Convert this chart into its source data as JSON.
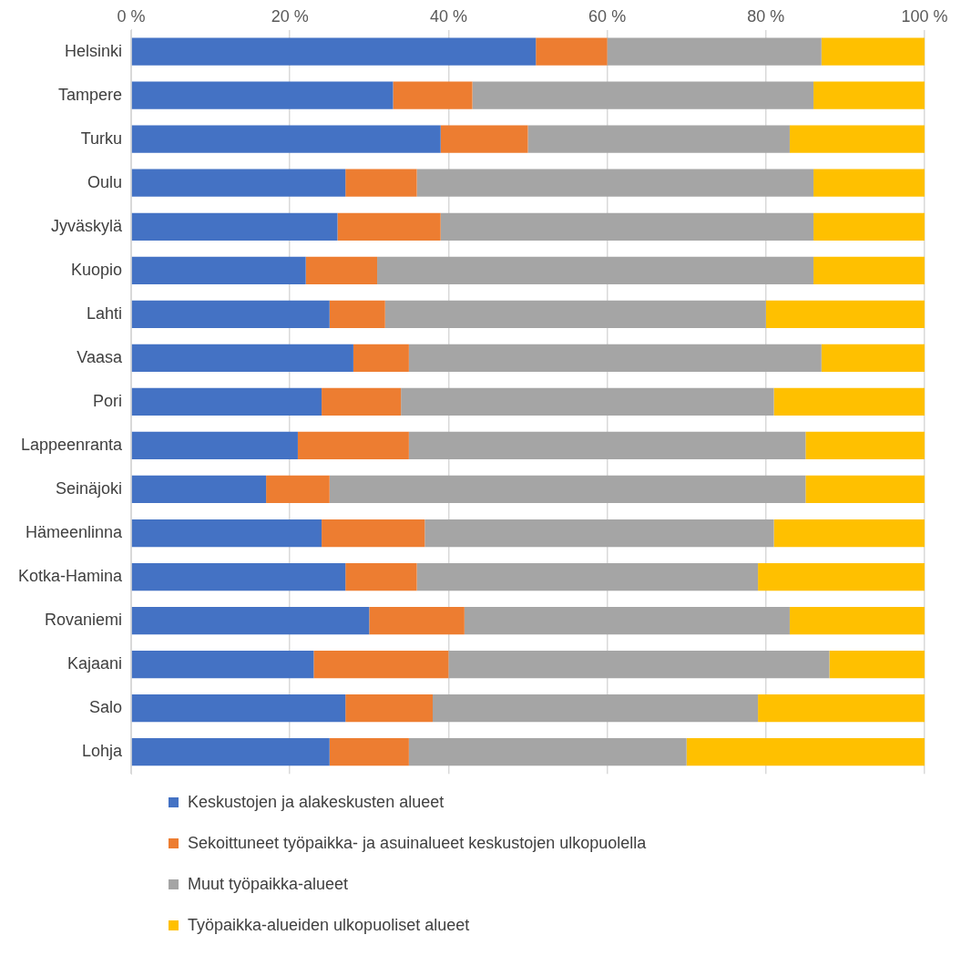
{
  "chart_data": {
    "type": "bar",
    "orientation": "horizontal",
    "stacked": true,
    "categories": [
      "Helsinki",
      "Tampere",
      "Turku",
      "Oulu",
      "Jyväskylä",
      "Kuopio",
      "Lahti",
      "Vaasa",
      "Pori",
      "Lappeenranta",
      "Seinäjoki",
      "Hämeenlinna",
      "Kotka-Hamina",
      "Rovaniemi",
      "Kajaani",
      "Salo",
      "Lohja"
    ],
    "series": [
      {
        "name": "Keskustojen ja alakeskusten alueet",
        "color": "#4472c4",
        "values": [
          51,
          33,
          39,
          27,
          26,
          22,
          25,
          28,
          24,
          21,
          17,
          24,
          27,
          30,
          23,
          27,
          25
        ]
      },
      {
        "name": "Sekoittuneet työpaikka- ja asuinalueet keskustojen ulkopuolella",
        "color": "#ed7d31",
        "values": [
          9,
          10,
          11,
          9,
          13,
          9,
          7,
          7,
          10,
          14,
          8,
          13,
          9,
          12,
          17,
          11,
          10
        ]
      },
      {
        "name": "Muut työpaikka-alueet",
        "color": "#a5a5a5",
        "values": [
          27,
          43,
          33,
          50,
          47,
          55,
          48,
          52,
          47,
          50,
          60,
          44,
          43,
          41,
          48,
          41,
          35
        ]
      },
      {
        "name": "Työpaikka-alueiden ulkopuoliset alueet",
        "color": "#ffc000",
        "values": [
          13,
          14,
          17,
          14,
          14,
          14,
          20,
          13,
          19,
          15,
          15,
          19,
          21,
          17,
          12,
          21,
          30
        ]
      }
    ],
    "xlim": [
      0,
      100
    ],
    "xticks": [
      {
        "value": 0,
        "label": "0 %"
      },
      {
        "value": 20,
        "label": "20 %"
      },
      {
        "value": 40,
        "label": "40 %"
      },
      {
        "value": 60,
        "label": "60 %"
      },
      {
        "value": 80,
        "label": "80 %"
      },
      {
        "value": 100,
        "label": "100 %"
      }
    ],
    "grid": "x",
    "legend": "bottom"
  }
}
